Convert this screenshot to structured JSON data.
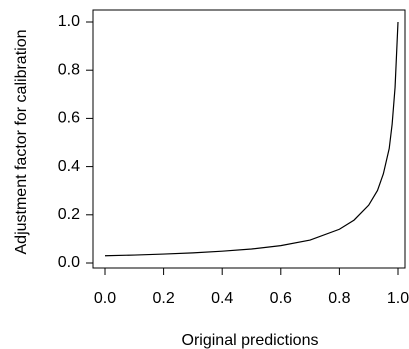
{
  "chart_data": {
    "type": "line",
    "title": "",
    "xlabel": "Original predictions",
    "ylabel": "Adjustment factor for calibration",
    "xlim": [
      0.0,
      1.0
    ],
    "ylim": [
      0.0,
      1.0
    ],
    "xticks": [
      "0.0",
      "0.2",
      "0.4",
      "0.6",
      "0.8",
      "1.0"
    ],
    "yticks": [
      "0.0",
      "0.2",
      "0.4",
      "0.6",
      "0.8",
      "1.0"
    ],
    "grid": false,
    "legend": "none",
    "series": [
      {
        "x": [
          0.0,
          0.1,
          0.2,
          0.3,
          0.4,
          0.5,
          0.6,
          0.7,
          0.8,
          0.85,
          0.9,
          0.93,
          0.95,
          0.97,
          0.98,
          0.99,
          1.0
        ],
        "y": [
          0.03,
          0.033,
          0.037,
          0.042,
          0.049,
          0.058,
          0.072,
          0.095,
          0.14,
          0.178,
          0.24,
          0.301,
          0.37,
          0.475,
          0.576,
          0.729,
          1.0
        ]
      }
    ]
  }
}
